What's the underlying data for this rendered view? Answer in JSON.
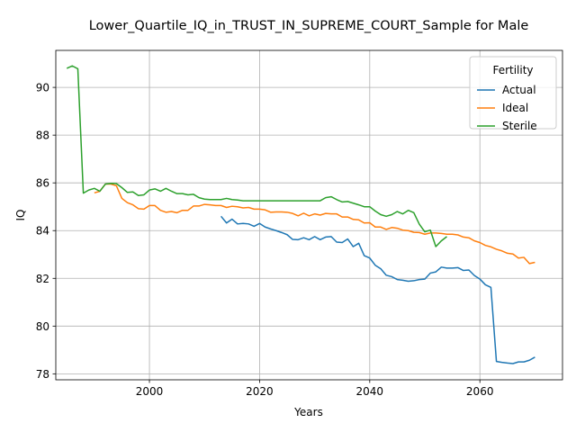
{
  "chart_data": {
    "type": "line",
    "title": "Lower_Quartile_IQ_in_TRUST_IN_SUPREME_COURT_Sample for Male",
    "xlabel": "Years",
    "ylabel": "IQ",
    "xlim": [
      1983,
      2075
    ],
    "ylim": [
      77.75,
      91.55
    ],
    "xticks": [
      2000,
      2020,
      2040,
      2060
    ],
    "yticks": [
      78,
      80,
      82,
      84,
      86,
      88,
      90
    ],
    "grid": true,
    "legend": {
      "title": "Fertility",
      "position": "top-right"
    },
    "series": [
      {
        "name": "Actual",
        "color": "#1f77b4",
        "x": [
          2013,
          2014,
          2015,
          2016,
          2017,
          2018,
          2019,
          2020,
          2021,
          2022,
          2023,
          2024,
          2025,
          2026,
          2027,
          2028,
          2029,
          2030,
          2031,
          2032,
          2033,
          2034,
          2035,
          2036,
          2037,
          2038,
          2039,
          2040,
          2041,
          2042,
          2043,
          2044,
          2045,
          2046,
          2047,
          2048,
          2049,
          2050,
          2051,
          2052,
          2053,
          2054,
          2055,
          2056,
          2057,
          2058,
          2059,
          2060,
          2061,
          2062,
          2063,
          2064,
          2065,
          2066,
          2067,
          2068,
          2069,
          2070
        ],
        "y": [
          84.6,
          84.32,
          84.48,
          84.28,
          84.3,
          84.28,
          84.18,
          84.3,
          84.15,
          84.07,
          84.0,
          83.92,
          83.83,
          83.63,
          83.62,
          83.7,
          83.62,
          83.75,
          83.62,
          83.73,
          83.75,
          83.52,
          83.5,
          83.65,
          83.33,
          83.47,
          82.95,
          82.85,
          82.55,
          82.4,
          82.13,
          82.07,
          81.95,
          81.92,
          81.88,
          81.9,
          81.95,
          81.97,
          82.22,
          82.27,
          82.47,
          82.43,
          82.43,
          82.45,
          82.33,
          82.35,
          82.12,
          81.97,
          81.73,
          81.62,
          78.52,
          78.48,
          78.45,
          78.43,
          78.5,
          78.5,
          78.57,
          78.7
        ]
      },
      {
        "name": "Ideal",
        "color": "#ff7f0e",
        "x": [
          1990,
          1991,
          1992,
          1993,
          1994,
          1995,
          1996,
          1997,
          1998,
          1999,
          2000,
          2001,
          2002,
          2003,
          2004,
          2005,
          2006,
          2007,
          2008,
          2009,
          2010,
          2011,
          2012,
          2013,
          2014,
          2015,
          2016,
          2017,
          2018,
          2019,
          2020,
          2021,
          2022,
          2023,
          2024,
          2025,
          2026,
          2027,
          2028,
          2029,
          2030,
          2031,
          2032,
          2033,
          2034,
          2035,
          2036,
          2037,
          2038,
          2039,
          2040,
          2041,
          2042,
          2043,
          2044,
          2045,
          2046,
          2047,
          2048,
          2049,
          2050,
          2051,
          2052,
          2053,
          2054,
          2055,
          2056,
          2057,
          2058,
          2059,
          2060,
          2061,
          2062,
          2063,
          2064,
          2065,
          2066,
          2067,
          2068,
          2069,
          2070
        ],
        "y": [
          85.58,
          85.65,
          85.95,
          85.95,
          85.88,
          85.35,
          85.17,
          85.08,
          84.92,
          84.9,
          85.05,
          85.05,
          84.85,
          84.77,
          84.8,
          84.75,
          84.85,
          84.85,
          85.03,
          85.03,
          85.1,
          85.08,
          85.05,
          85.05,
          84.97,
          85.02,
          85.0,
          84.95,
          84.97,
          84.9,
          84.9,
          84.87,
          84.77,
          84.78,
          84.78,
          84.77,
          84.72,
          84.62,
          84.73,
          84.62,
          84.7,
          84.65,
          84.72,
          84.7,
          84.7,
          84.57,
          84.57,
          84.47,
          84.45,
          84.32,
          84.33,
          84.15,
          84.15,
          84.05,
          84.13,
          84.1,
          84.02,
          84.0,
          83.93,
          83.92,
          83.85,
          83.9,
          83.9,
          83.88,
          83.85,
          83.85,
          83.82,
          83.73,
          83.7,
          83.57,
          83.5,
          83.38,
          83.32,
          83.22,
          83.15,
          83.05,
          83.02,
          82.85,
          82.88,
          82.62,
          82.67
        ]
      },
      {
        "name": "Sterile",
        "color": "#2ca02c",
        "x": [
          1985,
          1986,
          1987,
          1988,
          1989,
          1990,
          1991,
          1992,
          1993,
          1994,
          1995,
          1996,
          1997,
          1998,
          1999,
          2000,
          2001,
          2002,
          2003,
          2004,
          2005,
          2006,
          2007,
          2008,
          2009,
          2010,
          2011,
          2012,
          2013,
          2014,
          2015,
          2016,
          2017,
          2018,
          2019,
          2020,
          2021,
          2022,
          2023,
          2024,
          2025,
          2026,
          2027,
          2028,
          2029,
          2030,
          2031,
          2032,
          2033,
          2034,
          2035,
          2036,
          2037,
          2038,
          2039,
          2040,
          2041,
          2042,
          2043,
          2044,
          2045,
          2046,
          2047,
          2048,
          2049,
          2050,
          2051,
          2052,
          2053,
          2054
        ],
        "y": [
          90.8,
          90.9,
          90.78,
          85.57,
          85.7,
          85.77,
          85.65,
          85.95,
          85.98,
          85.97,
          85.8,
          85.6,
          85.62,
          85.47,
          85.5,
          85.7,
          85.75,
          85.65,
          85.77,
          85.65,
          85.55,
          85.55,
          85.5,
          85.52,
          85.38,
          85.32,
          85.3,
          85.3,
          85.3,
          85.35,
          85.3,
          85.28,
          85.25,
          85.25,
          85.25,
          85.25,
          85.25,
          85.25,
          85.25,
          85.25,
          85.25,
          85.25,
          85.25,
          85.25,
          85.25,
          85.25,
          85.25,
          85.38,
          85.42,
          85.3,
          85.2,
          85.22,
          85.15,
          85.08,
          85.0,
          85.0,
          84.82,
          84.67,
          84.6,
          84.67,
          84.8,
          84.7,
          84.85,
          84.75,
          84.27,
          83.95,
          84.02,
          83.33,
          83.57,
          83.75
        ]
      }
    ]
  }
}
